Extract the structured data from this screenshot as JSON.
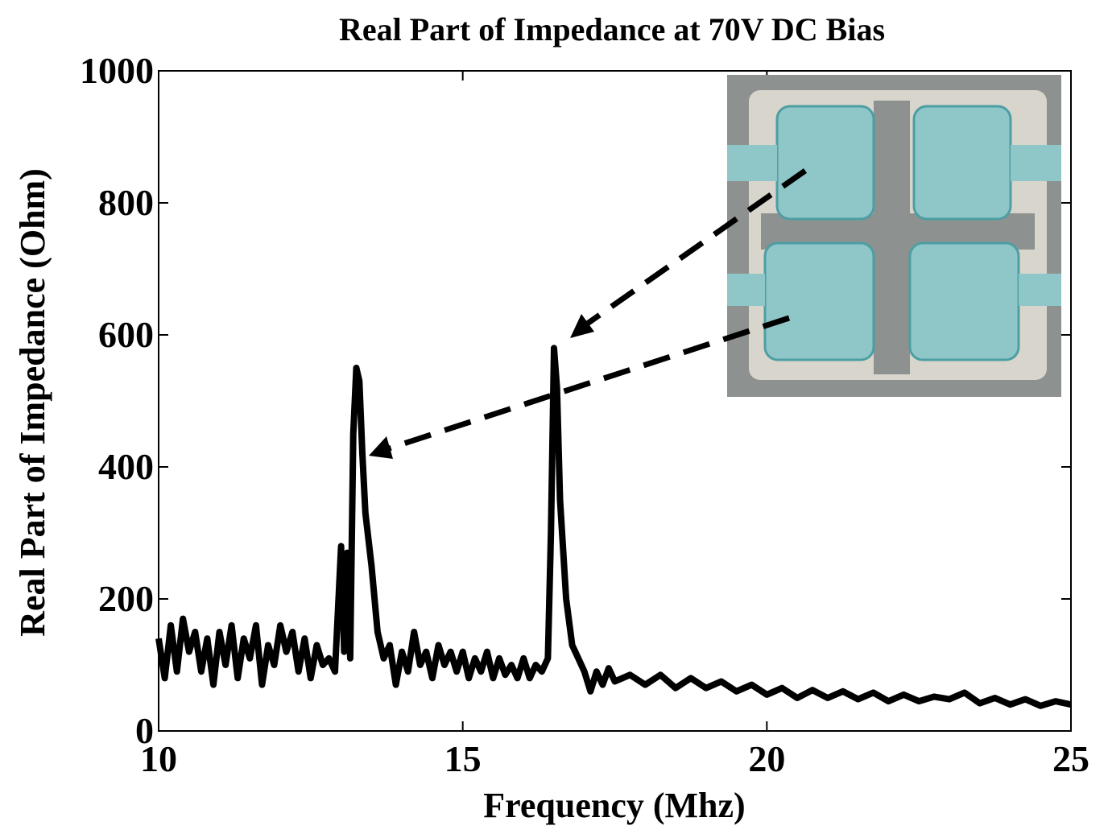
{
  "chart_data": {
    "type": "line",
    "title": "Real Part of Impedance at 70V DC Bias",
    "x_label": "Frequency (Mhz)",
    "y_label": "Real Part of Impedance (Ohm)",
    "color": "#000000",
    "xlim": [
      10,
      25
    ],
    "xticks": [
      10,
      15,
      20,
      25
    ],
    "ylim": [
      0,
      1000
    ],
    "yticks": [
      0,
      200,
      400,
      600,
      800,
      1000
    ],
    "x": [
      10.0,
      10.1,
      10.2,
      10.3,
      10.4,
      10.5,
      10.6,
      10.7,
      10.8,
      10.9,
      11.0,
      11.1,
      11.2,
      11.3,
      11.4,
      11.5,
      11.6,
      11.7,
      11.8,
      11.9,
      12.0,
      12.1,
      12.2,
      12.3,
      12.4,
      12.5,
      12.6,
      12.7,
      12.8,
      12.9,
      13.0,
      13.05,
      13.1,
      13.15,
      13.2,
      13.25,
      13.3,
      13.35,
      13.4,
      13.5,
      13.6,
      13.7,
      13.8,
      13.9,
      14.0,
      14.1,
      14.2,
      14.3,
      14.4,
      14.5,
      14.6,
      14.7,
      14.8,
      14.9,
      15.0,
      15.1,
      15.2,
      15.3,
      15.4,
      15.5,
      15.6,
      15.7,
      15.8,
      15.9,
      16.0,
      16.1,
      16.2,
      16.3,
      16.4,
      16.45,
      16.5,
      16.55,
      16.6,
      16.7,
      16.8,
      16.9,
      17.0,
      17.1,
      17.2,
      17.3,
      17.4,
      17.5,
      17.75,
      18.0,
      18.25,
      18.5,
      18.75,
      19.0,
      19.25,
      19.5,
      19.75,
      20.0,
      20.25,
      20.5,
      20.75,
      21.0,
      21.25,
      21.5,
      21.75,
      22.0,
      22.25,
      22.5,
      22.75,
      23.0,
      23.25,
      23.5,
      23.75,
      24.0,
      24.25,
      24.5,
      24.75,
      25.0
    ],
    "values": [
      140,
      80,
      160,
      90,
      170,
      120,
      150,
      90,
      140,
      70,
      150,
      100,
      160,
      80,
      140,
      110,
      160,
      70,
      130,
      100,
      160,
      120,
      150,
      90,
      140,
      80,
      130,
      100,
      110,
      90,
      280,
      120,
      270,
      110,
      450,
      550,
      530,
      420,
      330,
      250,
      150,
      110,
      130,
      70,
      120,
      90,
      150,
      100,
      120,
      80,
      130,
      100,
      120,
      90,
      120,
      80,
      110,
      90,
      120,
      80,
      110,
      85,
      100,
      80,
      110,
      80,
      100,
      90,
      110,
      300,
      580,
      520,
      350,
      200,
      130,
      110,
      90,
      60,
      90,
      70,
      95,
      75,
      85,
      70,
      85,
      65,
      80,
      65,
      75,
      60,
      70,
      55,
      65,
      50,
      62,
      50,
      60,
      48,
      58,
      45,
      55,
      45,
      52,
      48,
      58,
      42,
      50,
      40,
      48,
      38,
      45,
      40
    ],
    "grid": false
  }
}
